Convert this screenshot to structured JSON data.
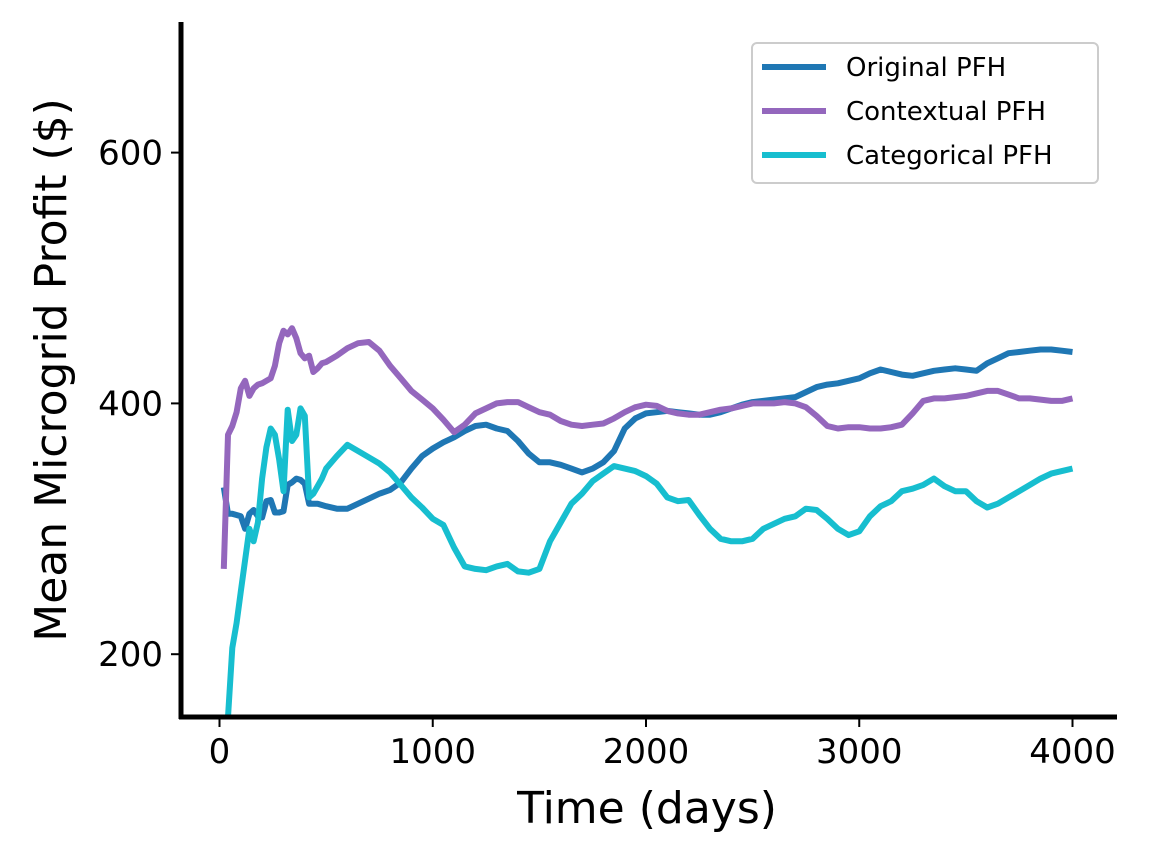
{
  "chart_data": {
    "type": "line",
    "title": "",
    "xlabel": "Time (days)",
    "ylabel": "Mean Microgrid Profit ($)",
    "xlim": [
      -180,
      4200
    ],
    "ylim": [
      150,
      700
    ],
    "xticks": [
      0,
      1000,
      2000,
      3000,
      4000
    ],
    "yticks": [
      200,
      400,
      600
    ],
    "grid": false,
    "legend_position": "upper-right",
    "series": [
      {
        "name": "Original PFH",
        "color": "#1f77b4",
        "x": [
          20,
          40,
          60,
          80,
          100,
          120,
          140,
          160,
          180,
          200,
          220,
          240,
          260,
          280,
          300,
          320,
          340,
          360,
          380,
          400,
          420,
          440,
          460,
          480,
          500,
          550,
          600,
          650,
          700,
          750,
          800,
          850,
          900,
          950,
          1000,
          1050,
          1100,
          1150,
          1200,
          1250,
          1300,
          1350,
          1400,
          1450,
          1500,
          1550,
          1600,
          1650,
          1700,
          1750,
          1800,
          1850,
          1900,
          1950,
          2000,
          2050,
          2100,
          2150,
          2200,
          2250,
          2300,
          2350,
          2400,
          2450,
          2500,
          2550,
          2600,
          2650,
          2700,
          2750,
          2800,
          2850,
          2900,
          2950,
          3000,
          3050,
          3100,
          3150,
          3200,
          3250,
          3300,
          3350,
          3400,
          3450,
          3500,
          3550,
          3600,
          3650,
          3700,
          3750,
          3800,
          3850,
          3900,
          3950,
          4000
        ],
        "y": [
          333,
          312,
          312,
          311,
          310,
          300,
          312,
          315,
          310,
          309,
          322,
          323,
          313,
          313,
          314,
          335,
          337,
          340,
          339,
          336,
          320,
          320,
          320,
          319,
          318,
          316,
          316,
          320,
          324,
          328,
          331,
          337,
          348,
          358,
          364,
          369,
          373,
          378,
          382,
          383,
          380,
          378,
          370,
          360,
          353,
          353,
          351,
          348,
          345,
          348,
          353,
          362,
          380,
          388,
          392,
          393,
          394,
          393,
          392,
          391,
          391,
          393,
          396,
          399,
          401,
          402,
          403,
          404,
          405,
          409,
          413,
          415,
          416,
          418,
          420,
          424,
          427,
          425,
          423,
          422,
          424,
          426,
          427,
          428,
          427,
          426,
          432,
          436,
          440,
          441,
          442,
          443,
          443,
          442,
          441
        ]
      },
      {
        "name": "Contextual PFH",
        "color": "#9467bd",
        "x": [
          20,
          40,
          60,
          80,
          100,
          120,
          140,
          160,
          180,
          200,
          220,
          240,
          260,
          280,
          300,
          320,
          340,
          360,
          380,
          400,
          420,
          440,
          460,
          480,
          500,
          550,
          600,
          650,
          700,
          750,
          800,
          850,
          900,
          950,
          1000,
          1050,
          1100,
          1150,
          1200,
          1250,
          1300,
          1350,
          1400,
          1450,
          1500,
          1550,
          1600,
          1650,
          1700,
          1750,
          1800,
          1850,
          1900,
          1950,
          2000,
          2050,
          2100,
          2150,
          2200,
          2250,
          2300,
          2350,
          2400,
          2450,
          2500,
          2550,
          2600,
          2650,
          2700,
          2750,
          2800,
          2850,
          2900,
          2950,
          3000,
          3050,
          3100,
          3150,
          3200,
          3250,
          3300,
          3350,
          3400,
          3450,
          3500,
          3550,
          3600,
          3650,
          3700,
          3750,
          3800,
          3850,
          3900,
          3950,
          4000
        ],
        "y": [
          268,
          375,
          382,
          393,
          412,
          418,
          406,
          412,
          415,
          416,
          418,
          420,
          430,
          448,
          458,
          455,
          460,
          452,
          440,
          436,
          438,
          425,
          428,
          432,
          433,
          438,
          444,
          448,
          449,
          442,
          430,
          420,
          410,
          403,
          396,
          387,
          377,
          383,
          392,
          396,
          400,
          401,
          401,
          397,
          393,
          391,
          386,
          383,
          382,
          383,
          384,
          388,
          393,
          397,
          399,
          398,
          394,
          392,
          391,
          391,
          393,
          395,
          396,
          398,
          400,
          400,
          400,
          401,
          400,
          397,
          390,
          382,
          380,
          381,
          381,
          380,
          380,
          381,
          383,
          392,
          402,
          404,
          404,
          405,
          406,
          408,
          410,
          410,
          407,
          404,
          404,
          403,
          402,
          402,
          404
        ]
      },
      {
        "name": "Categorical PFH",
        "color": "#17becf",
        "x": [
          40,
          60,
          80,
          100,
          120,
          140,
          160,
          180,
          200,
          220,
          240,
          260,
          280,
          300,
          320,
          340,
          360,
          380,
          400,
          420,
          440,
          460,
          480,
          500,
          550,
          600,
          650,
          700,
          750,
          800,
          850,
          900,
          950,
          1000,
          1050,
          1100,
          1150,
          1200,
          1250,
          1300,
          1350,
          1400,
          1450,
          1500,
          1550,
          1600,
          1650,
          1700,
          1750,
          1800,
          1850,
          1900,
          1950,
          2000,
          2050,
          2100,
          2150,
          2200,
          2250,
          2300,
          2350,
          2400,
          2450,
          2500,
          2550,
          2600,
          2650,
          2700,
          2750,
          2800,
          2850,
          2900,
          2950,
          3000,
          3050,
          3100,
          3150,
          3200,
          3250,
          3300,
          3350,
          3400,
          3450,
          3500,
          3550,
          3600,
          3650,
          3700,
          3750,
          3800,
          3850,
          3900,
          3950,
          4000
        ],
        "y": [
          150,
          205,
          225,
          250,
          275,
          300,
          290,
          305,
          340,
          365,
          380,
          375,
          355,
          330,
          395,
          370,
          375,
          396,
          390,
          325,
          328,
          334,
          340,
          348,
          358,
          367,
          362,
          357,
          352,
          345,
          335,
          325,
          317,
          308,
          303,
          285,
          270,
          268,
          267,
          270,
          272,
          266,
          265,
          268,
          290,
          305,
          320,
          328,
          338,
          344,
          350,
          348,
          346,
          342,
          336,
          325,
          322,
          323,
          311,
          300,
          292,
          290,
          290,
          292,
          300,
          304,
          308,
          310,
          316,
          315,
          308,
          300,
          295,
          298,
          310,
          318,
          322,
          330,
          332,
          335,
          340,
          334,
          330,
          330,
          322,
          317,
          320,
          325,
          330,
          335,
          340,
          344,
          346,
          348
        ]
      }
    ]
  }
}
